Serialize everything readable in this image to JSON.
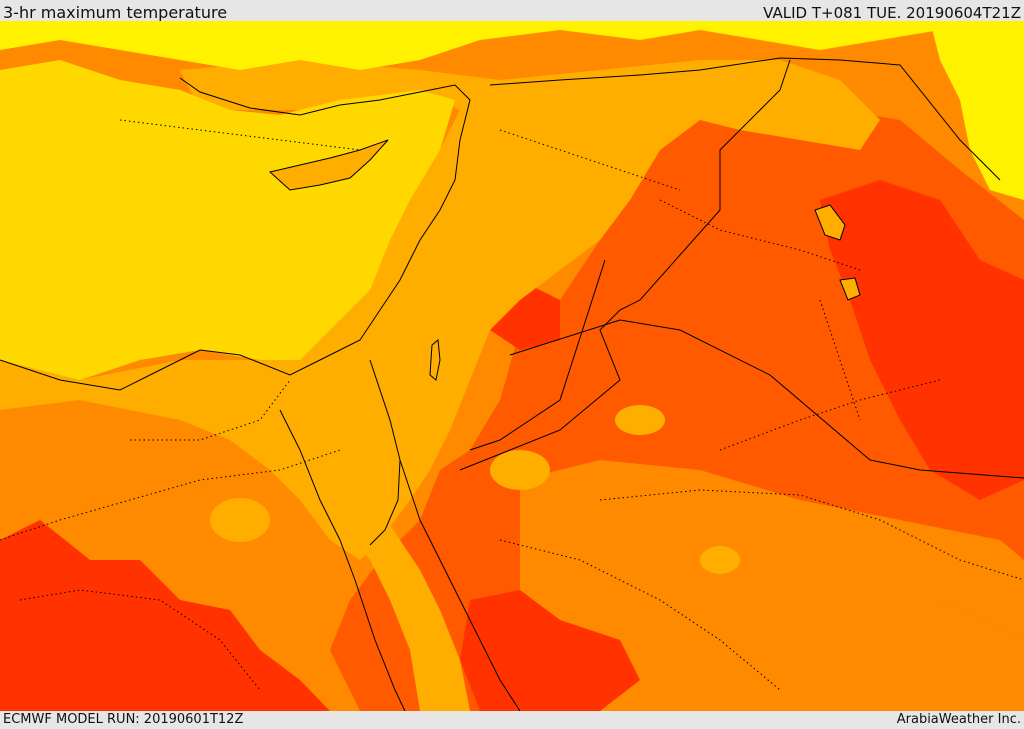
{
  "header": {
    "title": "3-hr maximum temperature",
    "valid_time": "VALID T+081 TUE. 20190604T21Z"
  },
  "footer": {
    "model_run": "ECMWF MODEL RUN: 20190601T12Z",
    "credit": "ArabiaWeather Inc."
  },
  "map": {
    "variable": "3-hr maximum temperature",
    "region": "Eastern Mediterranean and Middle East",
    "palette": {
      "coolest": "#fff200",
      "cool": "#ffd800",
      "mild": "#ffae00",
      "warm": "#ff8a00",
      "hot": "#ff5a00",
      "hottest": "#ff3200"
    },
    "border_color": "#000000"
  }
}
